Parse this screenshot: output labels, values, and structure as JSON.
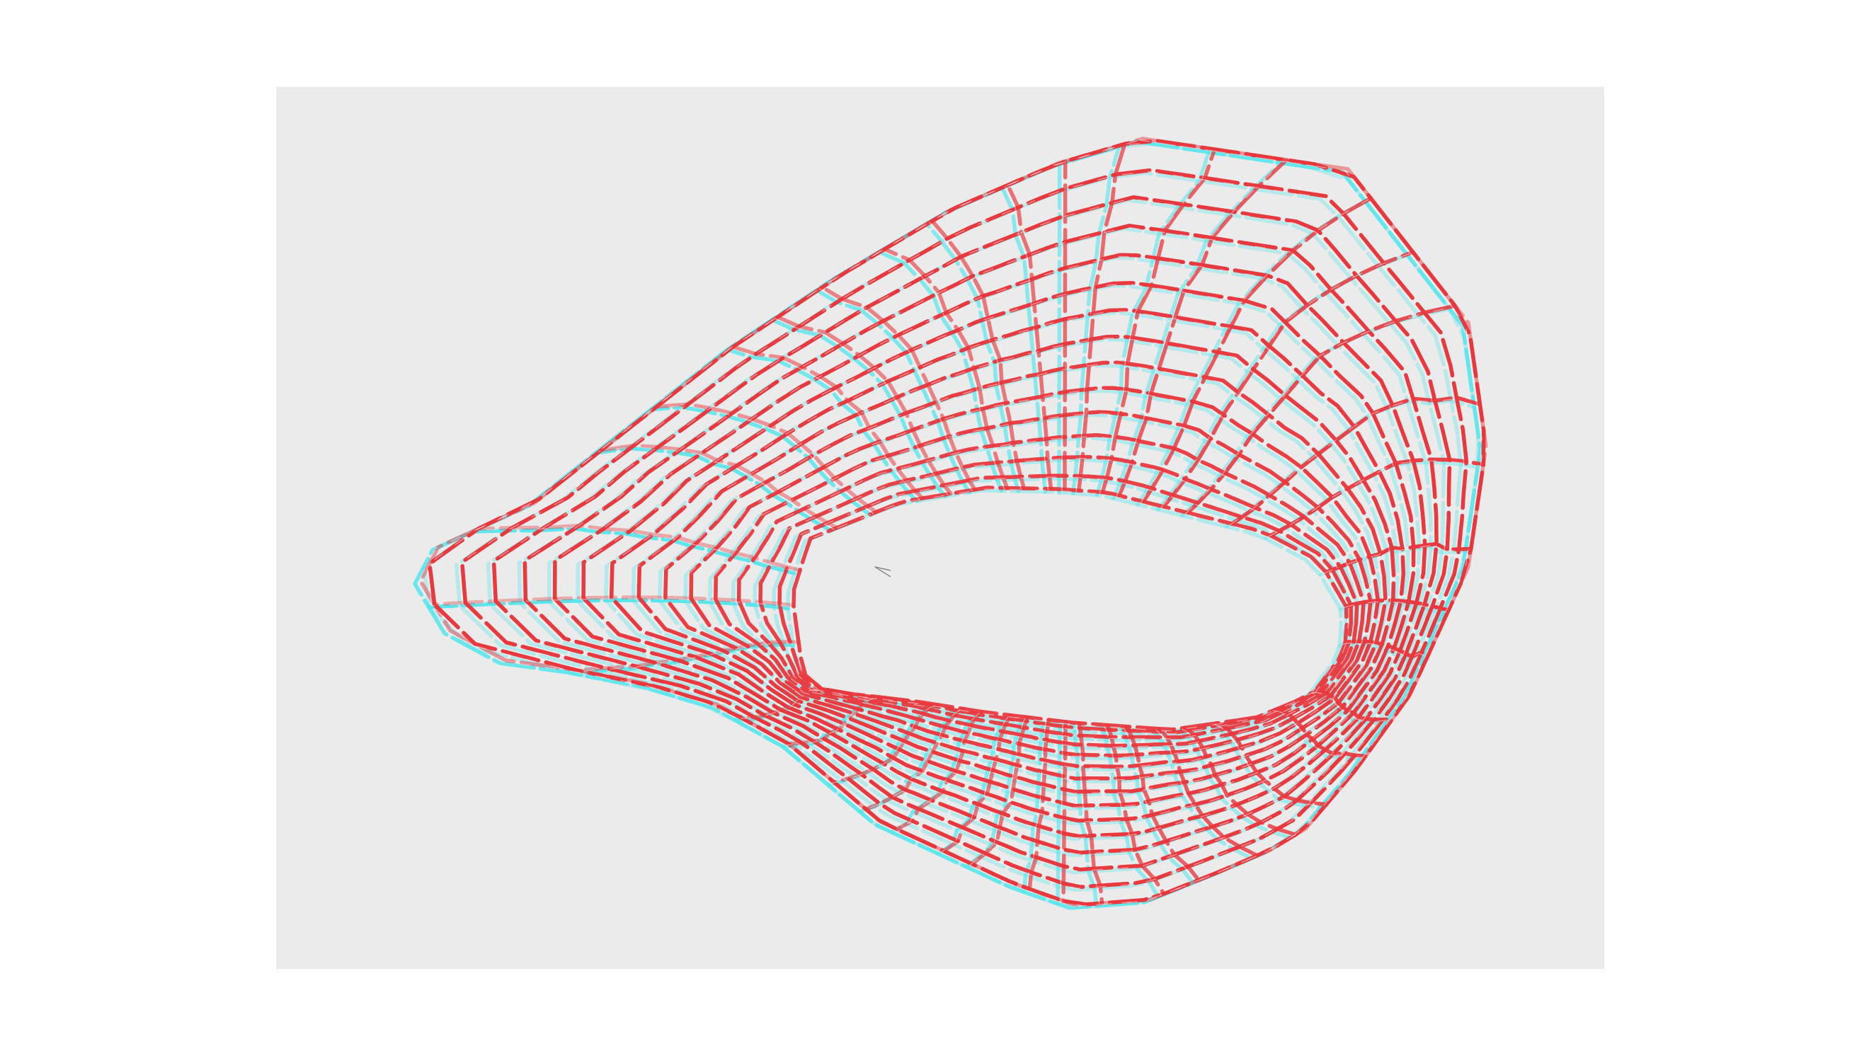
{
  "canvas": {
    "background_color": "#ebebeb",
    "page_color": "#ffffff"
  },
  "scene": {
    "object": "wireframe-surface",
    "render_style": "red-cyan-anaglyph",
    "left_eye_color": "#e8393f",
    "right_eye_color": "#56e6ec",
    "highlight_color": "#f4f4f4",
    "cursor_icon": "arrow-cursor-icon"
  }
}
